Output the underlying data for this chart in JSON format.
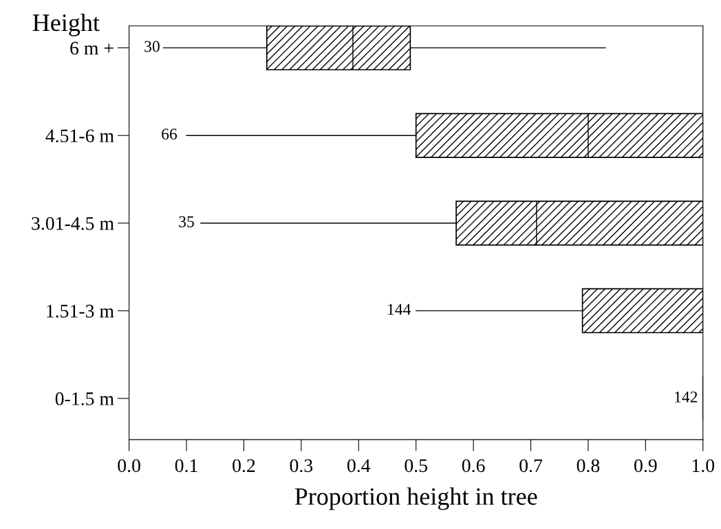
{
  "chart_data": {
    "type": "box",
    "orientation": "horizontal",
    "ylabel": "Height",
    "xlabel": "Proportion height in tree",
    "categories": [
      "6 m +",
      "4.51-6 m",
      "3.01-4.5 m",
      "1.51-3 m",
      "0-1.5 m"
    ],
    "boxes": [
      {
        "low": 0.06,
        "q1": 0.24,
        "median": 0.39,
        "q3": 0.49,
        "high": 0.83
      },
      {
        "low": 0.1,
        "q1": 0.5,
        "median": 0.8,
        "q3": 1.0,
        "high": 1.0
      },
      {
        "low": 0.125,
        "q1": 0.57,
        "median": 0.71,
        "q3": 1.0,
        "high": 1.0
      },
      {
        "low": 0.5,
        "q1": 0.79,
        "median": 1.0,
        "q3": 1.0,
        "high": 1.0
      },
      {
        "low": 1.0,
        "q1": 1.0,
        "median": 1.0,
        "q3": 1.0,
        "high": 1.0
      }
    ],
    "xlim": [
      0.0,
      1.0
    ],
    "xticks": [
      {
        "value": 0,
        "label": "0.0"
      },
      0.1,
      0.2,
      0.3,
      0.4,
      0.5,
      0.6,
      0.7,
      0.8,
      0.9,
      {
        "value": 1,
        "label": "1.0"
      }
    ],
    "annotations": [
      {
        "text": "30",
        "x": 0.04,
        "y": "6 m +"
      },
      {
        "text": "66",
        "x": 0.07,
        "y": "4.51-6 m"
      },
      {
        "text": "35",
        "x": 0.1,
        "y": "3.01-4.5 m"
      },
      {
        "text": "144",
        "x": 0.47,
        "y": "1.51-3 m"
      },
      {
        "text": "142",
        "x": 0.97,
        "y": "0-1.5 m"
      }
    ],
    "grid": false,
    "legend": false
  }
}
